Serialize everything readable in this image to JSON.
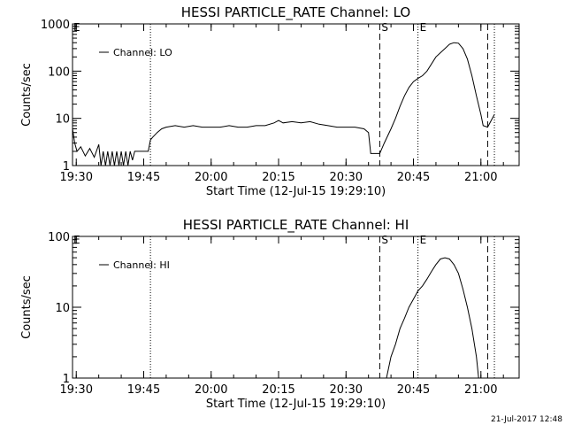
{
  "footer": {
    "date": "21-Jul-2017 12:48"
  },
  "chart_data": [
    {
      "type": "line",
      "title": "HESSI PARTICLE_RATE Channel: LO",
      "xlabel": "Start Time (12-Jul-15 19:29:10)",
      "ylabel": "Counts/sec",
      "yscale": "log",
      "ylim": [
        1,
        1000
      ],
      "xlim": [
        "19:29:10",
        "21:08:30"
      ],
      "x_ticks": [
        "19:30",
        "19:45",
        "20:00",
        "20:15",
        "20:30",
        "20:45",
        "21:00"
      ],
      "y_ticks": [
        "1",
        "10",
        "100",
        "1000"
      ],
      "legend": {
        "label": "Channel: LO",
        "placement": "top-left"
      },
      "markers": [
        {
          "label": "",
          "time": "19:46:30",
          "style": "dotted"
        },
        {
          "label": "S",
          "time": "20:37:30",
          "style": "dashed"
        },
        {
          "label": "E",
          "time": "20:46:00",
          "style": "dotted"
        },
        {
          "label": "",
          "time": "21:01:30",
          "style": "dashed"
        },
        {
          "label": "",
          "time": "21:03:00",
          "style": "dotted"
        }
      ],
      "corner_label": "E",
      "series": [
        {
          "name": "Channel: LO",
          "points": [
            [
              "19:29:10",
              6
            ],
            [
              "19:29:40",
              3
            ],
            [
              "19:30:10",
              2
            ],
            [
              "19:31:00",
              2.5
            ],
            [
              "19:32:00",
              1.6
            ],
            [
              "19:33:00",
              2.3
            ],
            [
              "19:34:00",
              1.5
            ],
            [
              "19:35:00",
              2.8
            ],
            [
              "19:35:30",
              1
            ],
            [
              "19:36:00",
              2
            ],
            [
              "19:36:30",
              1
            ],
            [
              "19:37:00",
              2
            ],
            [
              "19:37:30",
              1
            ],
            [
              "19:38:00",
              2
            ],
            [
              "19:38:30",
              1
            ],
            [
              "19:39:00",
              2
            ],
            [
              "19:39:30",
              1
            ],
            [
              "19:40:00",
              2
            ],
            [
              "19:40:30",
              1
            ],
            [
              "19:41:00",
              2
            ],
            [
              "19:41:30",
              1
            ],
            [
              "19:42:00",
              2
            ],
            [
              "19:42:30",
              1.3
            ],
            [
              "19:43:00",
              2
            ],
            [
              "19:44:00",
              2
            ],
            [
              "19:45:00",
              2
            ],
            [
              "19:46:00",
              2
            ],
            [
              "19:46:30",
              3.5
            ],
            [
              "19:47:00",
              4
            ],
            [
              "19:48:00",
              5
            ],
            [
              "19:49:00",
              6
            ],
            [
              "19:50:00",
              6.5
            ],
            [
              "19:52:00",
              7
            ],
            [
              "19:54:00",
              6.5
            ],
            [
              "19:56:00",
              7
            ],
            [
              "19:58:00",
              6.5
            ],
            [
              "20:00:00",
              6.5
            ],
            [
              "20:02:00",
              6.5
            ],
            [
              "20:04:00",
              7
            ],
            [
              "20:06:00",
              6.5
            ],
            [
              "20:08:00",
              6.5
            ],
            [
              "20:10:00",
              7
            ],
            [
              "20:12:00",
              7
            ],
            [
              "20:14:00",
              8
            ],
            [
              "20:15:00",
              9
            ],
            [
              "20:16:00",
              8
            ],
            [
              "20:18:00",
              8.5
            ],
            [
              "20:20:00",
              8
            ],
            [
              "20:22:00",
              8.5
            ],
            [
              "20:24:00",
              7.5
            ],
            [
              "20:26:00",
              7
            ],
            [
              "20:28:00",
              6.5
            ],
            [
              "20:30:00",
              6.5
            ],
            [
              "20:32:00",
              6.5
            ],
            [
              "20:34:00",
              6
            ],
            [
              "20:35:00",
              5
            ],
            [
              "20:35:30",
              1.8
            ],
            [
              "20:36:30",
              1.8
            ],
            [
              "20:37:30",
              1.8
            ],
            [
              "20:38:30",
              3
            ],
            [
              "20:40:00",
              6
            ],
            [
              "20:41:00",
              10
            ],
            [
              "20:42:00",
              18
            ],
            [
              "20:43:00",
              30
            ],
            [
              "20:44:00",
              45
            ],
            [
              "20:45:00",
              60
            ],
            [
              "20:46:00",
              70
            ],
            [
              "20:47:00",
              80
            ],
            [
              "20:48:00",
              100
            ],
            [
              "20:50:00",
              200
            ],
            [
              "20:52:00",
              300
            ],
            [
              "20:53:00",
              370
            ],
            [
              "20:54:00",
              400
            ],
            [
              "20:55:00",
              390
            ],
            [
              "20:56:00",
              300
            ],
            [
              "20:57:00",
              180
            ],
            [
              "20:58:00",
              80
            ],
            [
              "20:59:00",
              30
            ],
            [
              "21:00:00",
              12
            ],
            [
              "21:00:30",
              7
            ],
            [
              "21:01:30",
              6.5
            ],
            [
              "21:02:00",
              8
            ],
            [
              "21:03:00",
              12
            ]
          ]
        }
      ]
    },
    {
      "type": "line",
      "title": "HESSI PARTICLE_RATE Channel: HI",
      "xlabel": "Start Time (12-Jul-15 19:29:10)",
      "ylabel": "Counts/sec",
      "yscale": "log",
      "ylim": [
        1,
        100
      ],
      "xlim": [
        "19:29:10",
        "21:08:30"
      ],
      "x_ticks": [
        "19:30",
        "19:45",
        "20:00",
        "20:15",
        "20:30",
        "20:45",
        "21:00"
      ],
      "y_ticks": [
        "1",
        "10",
        "100"
      ],
      "legend": {
        "label": "Channel: HI",
        "placement": "top-left"
      },
      "markers": [
        {
          "label": "",
          "time": "19:46:30",
          "style": "dotted"
        },
        {
          "label": "S",
          "time": "20:37:30",
          "style": "dashed"
        },
        {
          "label": "E",
          "time": "20:46:00",
          "style": "dotted"
        },
        {
          "label": "",
          "time": "21:01:30",
          "style": "dashed"
        },
        {
          "label": "",
          "time": "21:03:00",
          "style": "dotted"
        }
      ],
      "corner_label": "E",
      "series": [
        {
          "name": "Channel: HI",
          "points": [
            [
              "20:39:00",
              1
            ],
            [
              "20:40:00",
              2
            ],
            [
              "20:41:00",
              3
            ],
            [
              "20:42:00",
              5
            ],
            [
              "20:43:00",
              7
            ],
            [
              "20:44:00",
              10
            ],
            [
              "20:45:00",
              13
            ],
            [
              "20:46:00",
              17
            ],
            [
              "20:47:00",
              20
            ],
            [
              "20:48:00",
              25
            ],
            [
              "20:49:00",
              32
            ],
            [
              "20:50:00",
              40
            ],
            [
              "20:51:00",
              48
            ],
            [
              "20:52:00",
              50
            ],
            [
              "20:53:00",
              48
            ],
            [
              "20:54:00",
              40
            ],
            [
              "20:55:00",
              30
            ],
            [
              "20:56:00",
              18
            ],
            [
              "20:57:00",
              10
            ],
            [
              "20:58:00",
              5
            ],
            [
              "20:59:00",
              2
            ],
            [
              "20:59:30",
              1
            ]
          ]
        }
      ]
    }
  ]
}
